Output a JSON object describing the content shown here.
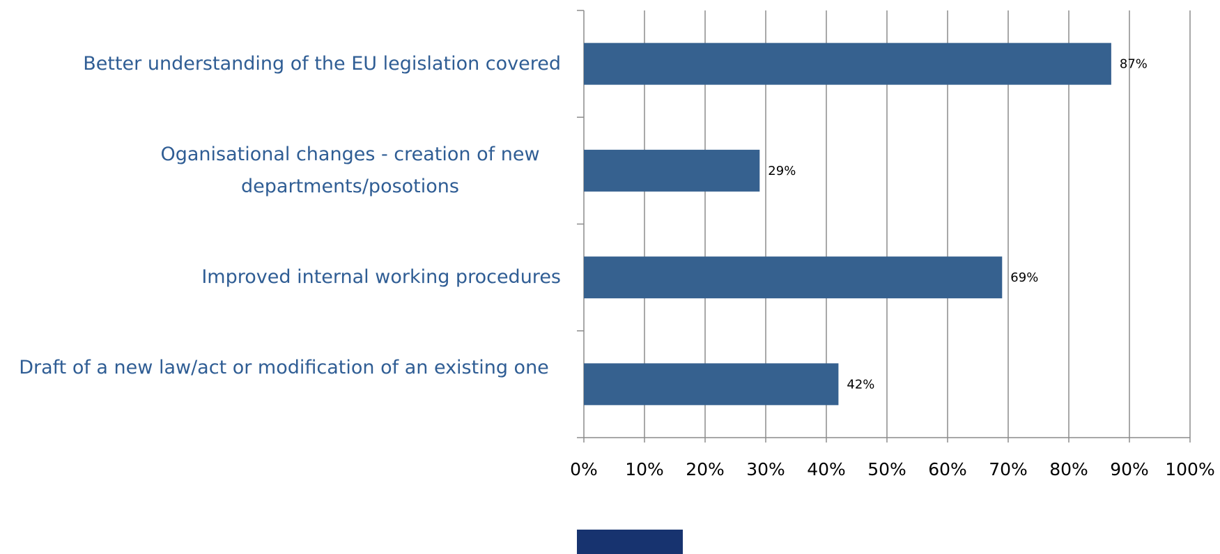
{
  "chart_data": {
    "type": "bar",
    "orientation": "horizontal",
    "categories": [
      "Better understanding of the EU legislation covered",
      "Oganisational changes - creation of new departments/posotions",
      "Improved internal working procedures",
      "Draft of a new law/act or modification of an existing one"
    ],
    "values": [
      87,
      29,
      69,
      42
    ],
    "data_labels": [
      "87%",
      "29%",
      "69%",
      "42%"
    ],
    "x_ticks": [
      "0%",
      "10%",
      "20%",
      "30%",
      "40%",
      "50%",
      "60%",
      "70%",
      "80%",
      "90%",
      "100%"
    ],
    "xlim": [
      0,
      100
    ],
    "grid": true,
    "bar_color": "#36618f",
    "label_color": "#2f5d94",
    "title": "",
    "xlabel": "",
    "ylabel": ""
  }
}
